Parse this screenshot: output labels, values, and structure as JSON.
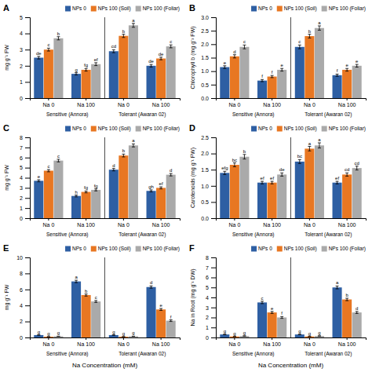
{
  "chart_data": [
    {
      "type": "bar",
      "title": "A",
      "ylabel": "mg g⁻¹ FW",
      "categories": [
        "Na 0",
        "Na 100",
        "Na 0",
        "Na 100"
      ],
      "annotations": [
        "Sensitive (Annora)",
        "Tolerant (Awaran 02)"
      ],
      "ylim": [
        0,
        5
      ],
      "yticks": [
        0,
        1,
        2,
        3,
        4,
        5
      ],
      "grid": false,
      "legend": "upper right",
      "series": [
        {
          "name": "NPs 0",
          "color": "#2E5FA3",
          "values": [
            2.5,
            1.5,
            2.9,
            2.0
          ],
          "errors": [
            0.08,
            0.07,
            0.09,
            0.08
          ],
          "letters": [
            "de",
            "g",
            "cd",
            "de"
          ]
        },
        {
          "name": "NPs 100 (Soil)",
          "color": "#E87722",
          "values": [
            3.0,
            1.75,
            3.85,
            2.45
          ],
          "errors": [
            0.09,
            0.08,
            0.1,
            0.08
          ],
          "letters": [
            "c",
            "fg",
            "b",
            "de"
          ]
        },
        {
          "name": "NPs 100 (Foliar)",
          "color": "#AAAAAA",
          "values": [
            3.7,
            2.1,
            4.5,
            3.2
          ],
          "errors": [
            0.1,
            0.09,
            0.12,
            0.09
          ],
          "letters": [
            "b",
            "ef",
            "a",
            "c"
          ]
        }
      ]
    },
    {
      "type": "bar",
      "title": "B",
      "ylabel": "Chlorophyll b (mg g⁻¹ FW)",
      "categories": [
        "Na 0",
        "Na 100",
        "Na 0",
        "Na 100"
      ],
      "annotations": [
        "Sensitive (Annora)",
        "Tolerant (Awaran 02)"
      ],
      "ylim": [
        0,
        3.0
      ],
      "yticks": [
        {
          "value": 0.0,
          "label": "0.0"
        },
        0.5,
        {
          "value": 1.0,
          "label": "1.0"
        },
        1.5,
        {
          "value": 2.0,
          "label": "2.0"
        },
        2.5,
        {
          "value": 3.0,
          "label": "3.0"
        }
      ],
      "grid": false,
      "legend": "upper right",
      "series": [
        {
          "name": "NPs 0",
          "color": "#2E5FA3",
          "values": [
            1.15,
            0.65,
            1.9,
            0.85
          ],
          "errors": [
            0.05,
            0.04,
            0.07,
            0.04
          ],
          "letters": [
            "e",
            "f",
            "c",
            "f"
          ]
        },
        {
          "name": "NPs 100 (Soil)",
          "color": "#E87722",
          "values": [
            1.55,
            0.8,
            2.3,
            1.05
          ],
          "errors": [
            0.06,
            0.04,
            0.07,
            0.05
          ],
          "letters": [
            "d",
            "f",
            "b",
            "e"
          ]
        },
        {
          "name": "NPs 100 (Foliar)",
          "color": "#AAAAAA",
          "values": [
            1.9,
            1.05,
            2.6,
            1.2
          ],
          "errors": [
            0.07,
            0.05,
            0.08,
            0.05
          ],
          "letters": [
            "c",
            "e",
            "a",
            "e"
          ]
        }
      ]
    },
    {
      "type": "bar",
      "title": "C",
      "ylabel": "mg g⁻¹ FW",
      "categories": [
        "Na 0",
        "Na 100",
        "Na 0",
        "Na 100"
      ],
      "annotations": [
        "Sensitive (Annora)",
        "Tolerant (Awaran 02)"
      ],
      "ylim": [
        0,
        8
      ],
      "yticks": [
        0,
        1,
        2,
        3,
        4,
        5,
        6,
        7,
        8
      ],
      "grid": false,
      "legend": "upper right",
      "series": [
        {
          "name": "NPs 0",
          "color": "#2E5FA3",
          "values": [
            3.7,
            2.2,
            4.8,
            2.7
          ],
          "errors": [
            0.1,
            0.09,
            0.12,
            0.1
          ],
          "letters": [
            "e",
            "h",
            "d",
            "gh"
          ]
        },
        {
          "name": "NPs 100 (Soil)",
          "color": "#E87722",
          "values": [
            4.7,
            2.6,
            6.2,
            3.0
          ],
          "errors": [
            0.11,
            0.09,
            0.14,
            0.1
          ],
          "letters": [
            "c",
            "fg",
            "b",
            "ef"
          ]
        },
        {
          "name": "NPs 100 (Foliar)",
          "color": "#AAAAAA",
          "values": [
            5.7,
            2.8,
            7.2,
            4.3
          ],
          "errors": [
            0.13,
            0.1,
            0.15,
            0.12
          ],
          "letters": [
            "c",
            "fg",
            "a",
            "d"
          ]
        }
      ]
    },
    {
      "type": "bar",
      "title": "D",
      "ylabel": "Carotenoids (mg g⁻¹ FW)",
      "categories": [
        "Na 0",
        "Na 100",
        "Na 0",
        "Na 100"
      ],
      "annotations": [
        "Sensitive (Annora)",
        "Tolerant (Awaran 02)"
      ],
      "ylim": [
        0,
        2.5
      ],
      "yticks": [
        {
          "value": 0.0,
          "label": "0.0"
        },
        0.5,
        {
          "value": 1.0,
          "label": "1.0"
        },
        1.5,
        {
          "value": 2.0,
          "label": "2.0"
        },
        2.5
      ],
      "grid": false,
      "legend": "upper right",
      "series": [
        {
          "name": "NPs 0",
          "color": "#2E5FA3",
          "values": [
            1.4,
            1.1,
            1.75,
            1.1
          ],
          "errors": [
            0.05,
            0.04,
            0.06,
            0.04
          ],
          "letters": [
            "efg",
            "ef",
            "bc",
            "ef"
          ]
        },
        {
          "name": "NPs 100 (Soil)",
          "color": "#E87722",
          "values": [
            1.65,
            1.1,
            2.15,
            1.35
          ],
          "errors": [
            0.06,
            0.04,
            0.07,
            0.05
          ],
          "letters": [
            "bc",
            "ef",
            "a",
            "cd"
          ]
        },
        {
          "name": "NPs 100 (Foliar)",
          "color": "#AAAAAA",
          "values": [
            1.9,
            1.35,
            2.25,
            1.55
          ],
          "errors": [
            0.07,
            0.05,
            0.08,
            0.06
          ],
          "letters": [
            "b",
            "de",
            "a",
            "cd"
          ]
        }
      ]
    },
    {
      "type": "bar",
      "title": "E",
      "ylabel": "mg g⁻¹ FW",
      "xlabel": "Na Concentration (mM)",
      "categories": [
        "Na 0",
        "Na 100",
        "Na 0",
        "Na 100"
      ],
      "annotations": [
        "Sensitive (Annora)",
        "Tolerant (Awaran 02)"
      ],
      "ylim": [
        0,
        10
      ],
      "yticks": [
        0,
        2,
        4,
        6,
        8,
        10
      ],
      "grid": false,
      "legend": "upper right",
      "series": [
        {
          "name": "NPs 0",
          "color": "#2E5FA3",
          "values": [
            0.3,
            7.0,
            0.3,
            6.3
          ],
          "errors": [
            0.02,
            0.15,
            0.02,
            0.14
          ],
          "letters": [
            "g",
            "a",
            "g",
            "d"
          ]
        },
        {
          "name": "NPs 100 (Soil)",
          "color": "#E87722",
          "values": [
            0.1,
            5.3,
            0.1,
            3.5
          ],
          "errors": [
            0.01,
            0.13,
            0.01,
            0.12
          ],
          "letters": [
            "g",
            "b",
            "g",
            "e"
          ]
        },
        {
          "name": "NPs 100 (Foliar)",
          "color": "#AAAAAA",
          "values": [
            0.15,
            4.5,
            0.15,
            2.1
          ],
          "errors": [
            0.01,
            0.12,
            0.01,
            0.1
          ],
          "letters": [
            "g",
            "c",
            "g",
            "f"
          ]
        }
      ]
    },
    {
      "type": "bar",
      "title": "F",
      "ylabel": "Na in Root (mg g⁻¹ DW)",
      "xlabel": "Na Concentration (mM)",
      "categories": [
        "Na 0",
        "Na 100",
        "Na 0",
        "Na 100"
      ],
      "annotations": [
        "Sensitive (Annora)",
        "Tolerant (Awaran 02)"
      ],
      "ylim": [
        0,
        8
      ],
      "yticks": [
        0,
        1,
        2,
        3,
        4,
        5,
        6,
        7,
        8
      ],
      "grid": false,
      "legend": "upper right",
      "series": [
        {
          "name": "NPs 0",
          "color": "#2E5FA3",
          "values": [
            0.3,
            3.5,
            0.3,
            5.0
          ],
          "errors": [
            0.02,
            0.12,
            0.02,
            0.14
          ],
          "letters": [
            "g",
            "c",
            "g",
            "a"
          ]
        },
        {
          "name": "NPs 100 (Soil)",
          "color": "#E87722",
          "values": [
            0.1,
            2.5,
            0.1,
            3.8
          ],
          "errors": [
            0.01,
            0.1,
            0.01,
            0.12
          ],
          "letters": [
            "g",
            "e",
            "g",
            "b"
          ]
        },
        {
          "name": "NPs 100 (Foliar)",
          "color": "#AAAAAA",
          "values": [
            0.15,
            2.0,
            0.15,
            2.5
          ],
          "errors": [
            0.01,
            0.09,
            0.01,
            0.1
          ],
          "letters": [
            "g",
            "f",
            "g",
            "d"
          ]
        }
      ]
    }
  ]
}
